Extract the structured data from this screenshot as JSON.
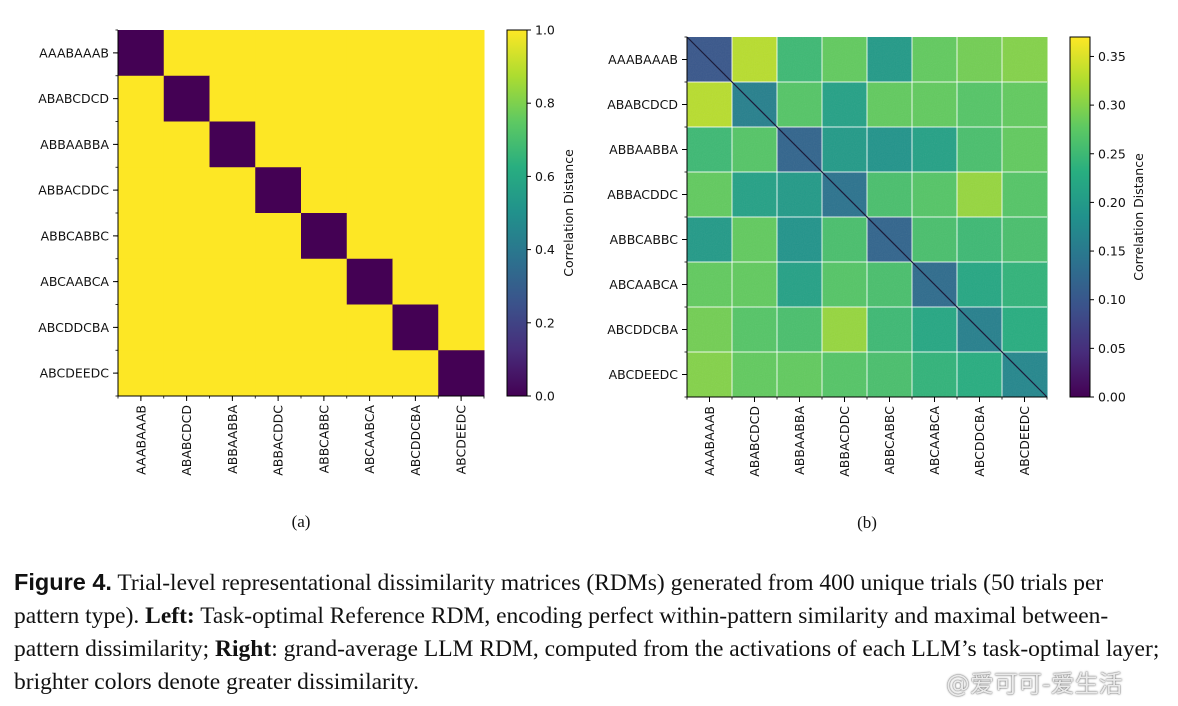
{
  "chart_data": [
    {
      "type": "heatmap",
      "caption_label": "(a)",
      "row_labels": [
        "AAABAAAB",
        "ABABCDCD",
        "ABBAABBA",
        "ABBACDDC",
        "ABBCABBC",
        "ABCAABCA",
        "ABCDDCBA",
        "ABCDEEDC"
      ],
      "col_labels": [
        "AAABAAAB",
        "ABABCDCD",
        "ABBAABBA",
        "ABBACDDC",
        "ABBCABBC",
        "ABCAABCA",
        "ABCDDCBA",
        "ABCDEEDC"
      ],
      "values": [
        [
          0,
          1,
          1,
          1,
          1,
          1,
          1,
          1
        ],
        [
          1,
          0,
          1,
          1,
          1,
          1,
          1,
          1
        ],
        [
          1,
          1,
          0,
          1,
          1,
          1,
          1,
          1
        ],
        [
          1,
          1,
          1,
          0,
          1,
          1,
          1,
          1
        ],
        [
          1,
          1,
          1,
          1,
          0,
          1,
          1,
          1
        ],
        [
          1,
          1,
          1,
          1,
          1,
          0,
          1,
          1
        ],
        [
          1,
          1,
          1,
          1,
          1,
          1,
          0,
          1
        ],
        [
          1,
          1,
          1,
          1,
          1,
          1,
          1,
          0
        ]
      ],
      "vmin": 0,
      "vmax": 1,
      "colorbar_label": "Correlation Distance",
      "colorbar_ticks": [
        "0.0",
        "0.2",
        "0.4",
        "0.6",
        "0.8",
        "1.0"
      ],
      "colorbar_tick_values": [
        0,
        0.2,
        0.4,
        0.6,
        0.8,
        1.0
      ],
      "colormap": "viridis",
      "grid": false
    },
    {
      "type": "heatmap",
      "caption_label": "(b)",
      "row_labels": [
        "AAABAAAB",
        "ABABCDCD",
        "ABBAABBA",
        "ABBACDDC",
        "ABBCABBC",
        "ABCAABCA",
        "ABCDDCBA",
        "ABCDEEDC"
      ],
      "col_labels": [
        "AAABAAAB",
        "ABABCDCD",
        "ABBAABBA",
        "ABBACDDC",
        "ABBCABBC",
        "ABCAABCA",
        "ABCDDCBA",
        "ABCDEEDC"
      ],
      "values": [
        [
          0.1,
          0.33,
          0.25,
          0.28,
          0.2,
          0.28,
          0.29,
          0.3
        ],
        [
          0.33,
          0.16,
          0.27,
          0.21,
          0.28,
          0.28,
          0.27,
          0.28
        ],
        [
          0.25,
          0.27,
          0.12,
          0.2,
          0.19,
          0.21,
          0.26,
          0.28
        ],
        [
          0.28,
          0.21,
          0.2,
          0.14,
          0.26,
          0.27,
          0.31,
          0.27
        ],
        [
          0.2,
          0.28,
          0.19,
          0.26,
          0.12,
          0.26,
          0.25,
          0.26
        ],
        [
          0.28,
          0.28,
          0.21,
          0.27,
          0.26,
          0.13,
          0.22,
          0.24
        ],
        [
          0.29,
          0.27,
          0.26,
          0.31,
          0.25,
          0.22,
          0.16,
          0.23
        ],
        [
          0.3,
          0.28,
          0.28,
          0.27,
          0.26,
          0.24,
          0.23,
          0.17
        ]
      ],
      "vmin": 0,
      "vmax": 0.37,
      "colorbar_label": "Correlation Distance",
      "colorbar_ticks": [
        "0.00",
        "0.05",
        "0.10",
        "0.15",
        "0.20",
        "0.25",
        "0.30",
        "0.35"
      ],
      "colorbar_tick_values": [
        0,
        0.05,
        0.1,
        0.15,
        0.2,
        0.25,
        0.3,
        0.35
      ],
      "colormap": "viridis",
      "grid": true
    }
  ],
  "caption": {
    "figure_label": "Figure 4.",
    "part1": " Trial-level representational dissimilarity matrices (RDMs) generated from 400 unique trials (50 trials per pattern type). ",
    "left_label": "Left:",
    "part2": " Task-optimal Reference RDM, encoding perfect within-pattern similarity and maximal between-pattern dissimilarity; ",
    "right_label": "Right",
    "part3": ": grand-average LLM RDM, computed from the activations of each LLM’s task-optimal layer; brighter colors denote greater dissimilarity."
  },
  "watermark": "@爱可可-爱生活"
}
